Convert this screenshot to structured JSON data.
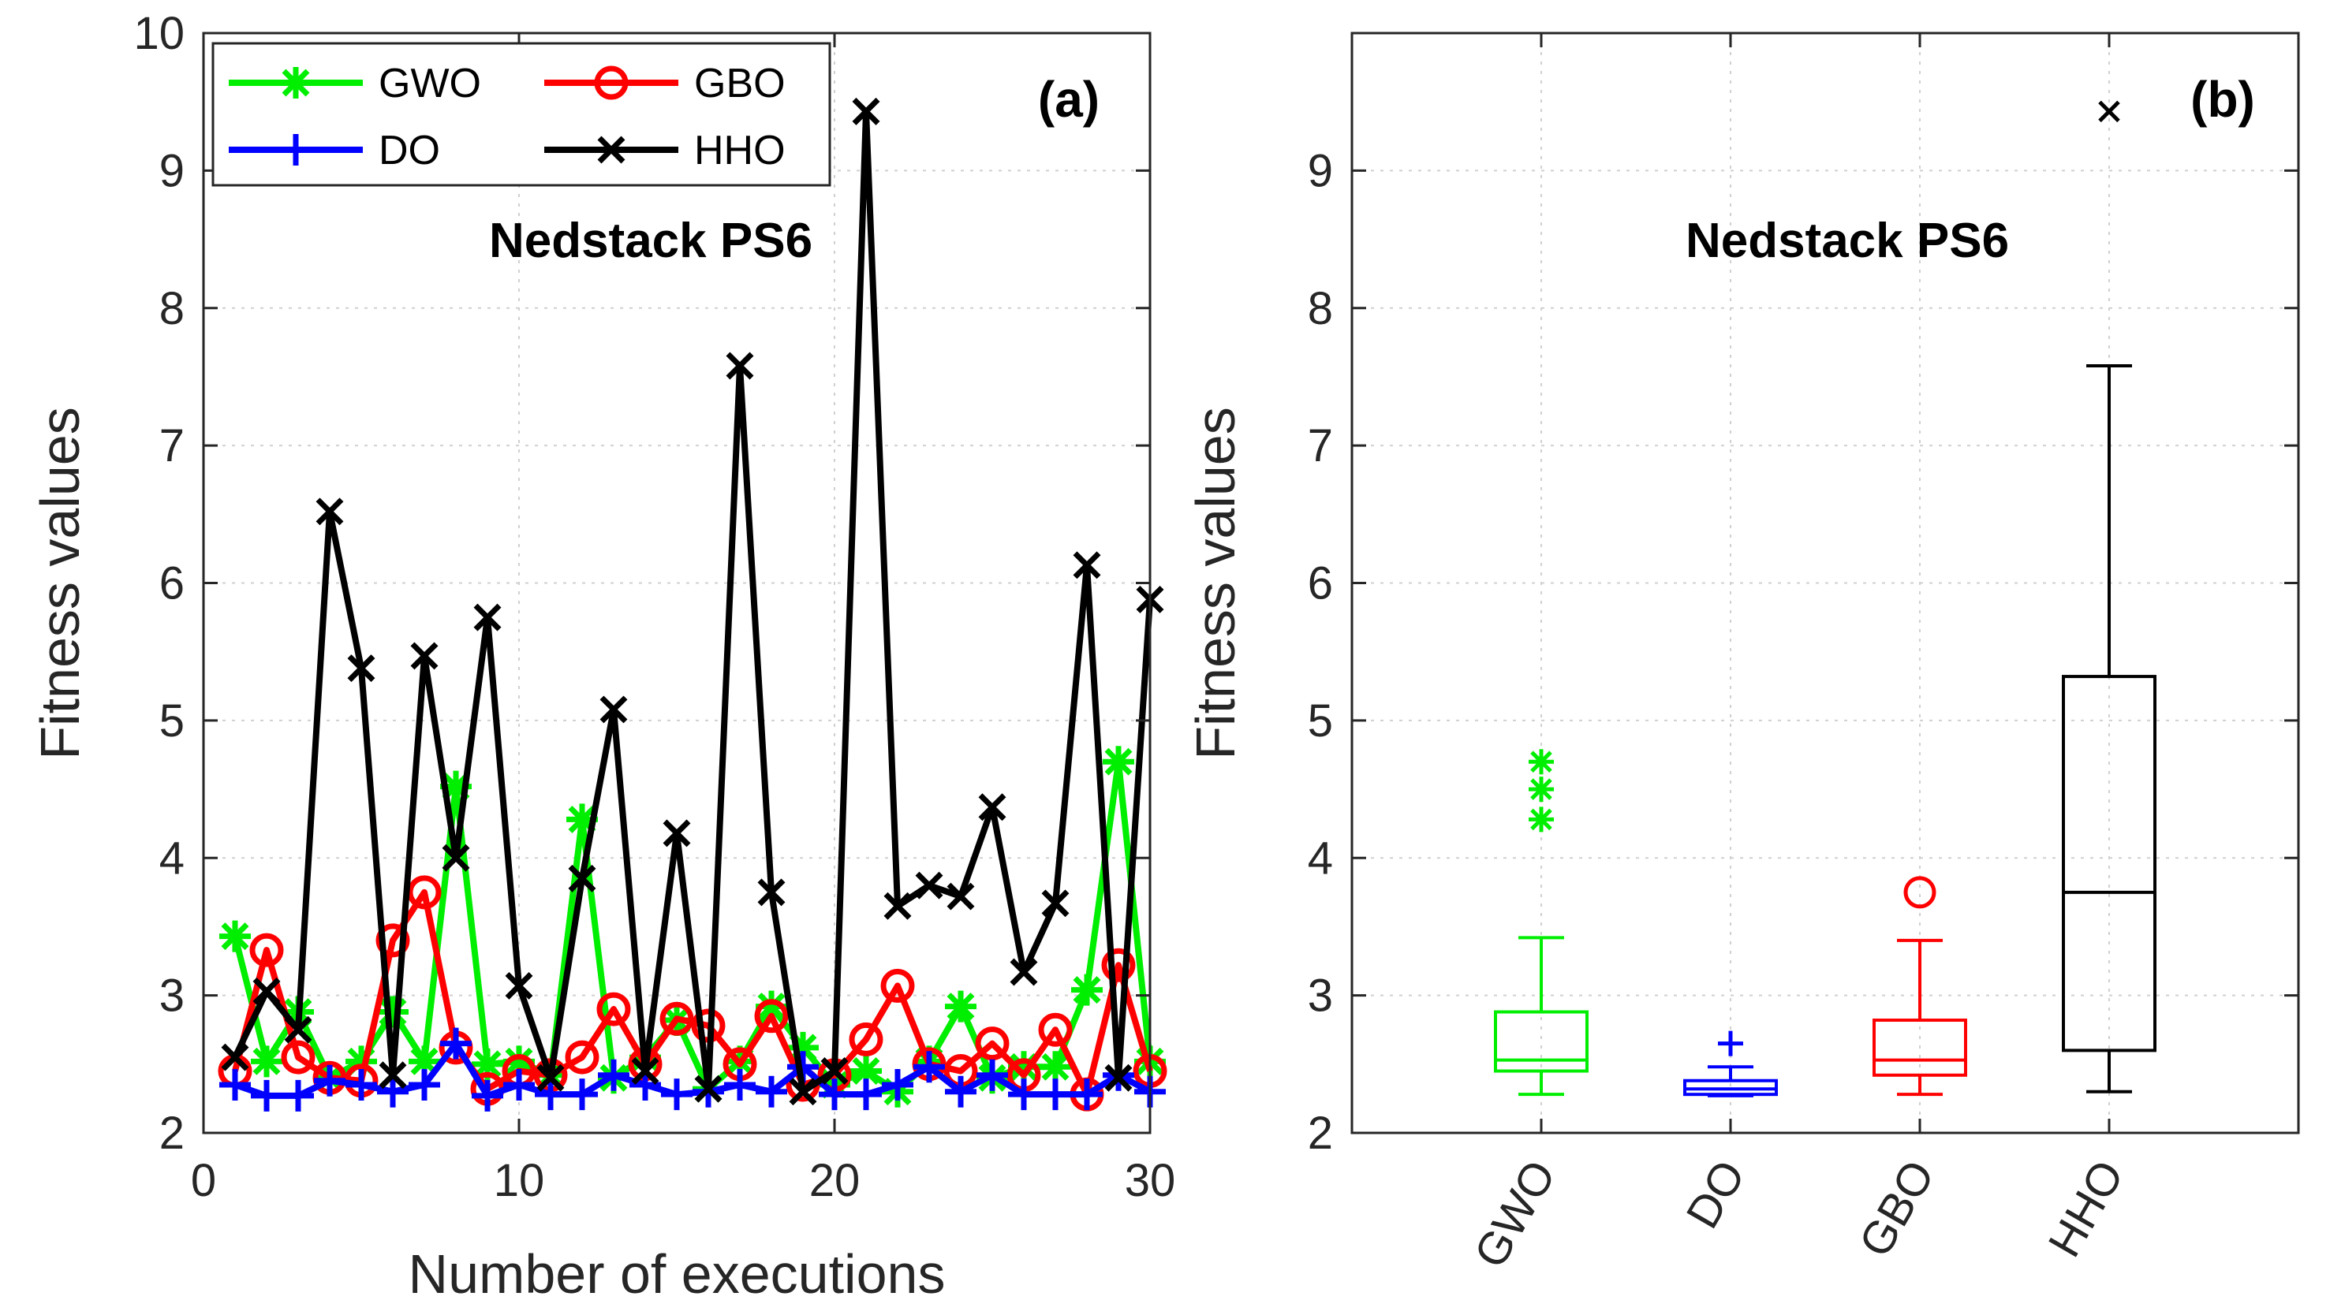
{
  "chart_data": [
    {
      "type": "line",
      "panel_label": "(a)",
      "title": "Nedstack PS6",
      "xlabel": "Number of executions",
      "ylabel": "Fitness values",
      "xlim": [
        0,
        30
      ],
      "ylim": [
        2,
        10
      ],
      "xticks": [
        "0",
        "10",
        "20",
        "30"
      ],
      "yticks": [
        "2",
        "3",
        "4",
        "5",
        "6",
        "7",
        "8",
        "9",
        "10"
      ],
      "grid": true,
      "legend_position": "top-left",
      "x": [
        1,
        2,
        3,
        4,
        5,
        6,
        7,
        8,
        9,
        10,
        11,
        12,
        13,
        14,
        15,
        16,
        17,
        18,
        19,
        20,
        21,
        22,
        23,
        24,
        25,
        26,
        27,
        28,
        29,
        30
      ],
      "series": [
        {
          "name": "GWO",
          "color": "#00ee00",
          "marker": "asterisk",
          "values": [
            3.43,
            2.52,
            2.88,
            2.4,
            2.52,
            2.88,
            2.52,
            4.52,
            2.5,
            2.52,
            2.42,
            4.28,
            2.4,
            2.55,
            2.82,
            2.32,
            2.52,
            2.92,
            2.62,
            2.35,
            2.45,
            2.3,
            2.52,
            2.92,
            2.4,
            2.48,
            2.48,
            3.04,
            4.7,
            2.52
          ]
        },
        {
          "name": "GBO",
          "color": "#ff0000",
          "marker": "circle",
          "values": [
            2.45,
            3.33,
            2.55,
            2.4,
            2.38,
            3.4,
            3.75,
            2.62,
            2.32,
            2.45,
            2.42,
            2.55,
            2.9,
            2.5,
            2.83,
            2.78,
            2.5,
            2.85,
            2.35,
            2.42,
            2.68,
            3.07,
            2.5,
            2.45,
            2.65,
            2.42,
            2.75,
            2.28,
            3.22,
            2.45
          ]
        },
        {
          "name": "DO",
          "color": "#0000ff",
          "marker": "plus",
          "values": [
            2.35,
            2.27,
            2.27,
            2.38,
            2.35,
            2.3,
            2.35,
            2.65,
            2.27,
            2.35,
            2.28,
            2.28,
            2.42,
            2.35,
            2.28,
            2.3,
            2.35,
            2.3,
            2.48,
            2.28,
            2.28,
            2.35,
            2.48,
            2.3,
            2.42,
            2.28,
            2.28,
            2.28,
            2.42,
            2.3
          ]
        },
        {
          "name": "HHO",
          "color": "#000000",
          "marker": "x",
          "values": [
            2.55,
            3.03,
            2.75,
            6.52,
            5.38,
            2.42,
            5.47,
            4.0,
            5.75,
            3.07,
            2.4,
            3.85,
            5.08,
            2.45,
            4.18,
            2.32,
            7.58,
            3.75,
            2.3,
            2.45,
            9.43,
            3.65,
            3.8,
            3.72,
            4.37,
            3.17,
            3.67,
            6.13,
            2.4,
            5.88
          ]
        }
      ]
    },
    {
      "type": "box",
      "panel_label": "(b)",
      "title": "Nedstack PS6",
      "xlabel": "",
      "ylabel": "Fitness values",
      "ylim": [
        2,
        10
      ],
      "yticks": [
        "2",
        "3",
        "4",
        "5",
        "6",
        "7",
        "8",
        "9"
      ],
      "grid": true,
      "categories": [
        "GWO",
        "DO",
        "GBO",
        "HHO"
      ],
      "boxes": [
        {
          "name": "GWO",
          "color": "#00ee00",
          "outlier_marker": "asterisk",
          "whisker_low": 2.28,
          "q1": 2.45,
          "median": 2.53,
          "q3": 2.88,
          "whisker_high": 3.42,
          "outliers": [
            4.28,
            4.5,
            4.7
          ]
        },
        {
          "name": "DO",
          "color": "#0000ff",
          "outlier_marker": "plus",
          "whisker_low": 2.27,
          "q1": 2.28,
          "median": 2.32,
          "q3": 2.38,
          "whisker_high": 2.48,
          "outliers": [
            2.65
          ]
        },
        {
          "name": "GBO",
          "color": "#ff0000",
          "outlier_marker": "circle",
          "whisker_low": 2.28,
          "q1": 2.42,
          "median": 2.53,
          "q3": 2.82,
          "whisker_high": 3.4,
          "outliers": [
            3.75
          ]
        },
        {
          "name": "HHO",
          "color": "#000000",
          "outlier_marker": "x",
          "whisker_low": 2.3,
          "q1": 2.6,
          "median": 3.75,
          "q3": 5.32,
          "whisker_high": 7.58,
          "outliers": [
            9.43
          ]
        }
      ]
    }
  ]
}
